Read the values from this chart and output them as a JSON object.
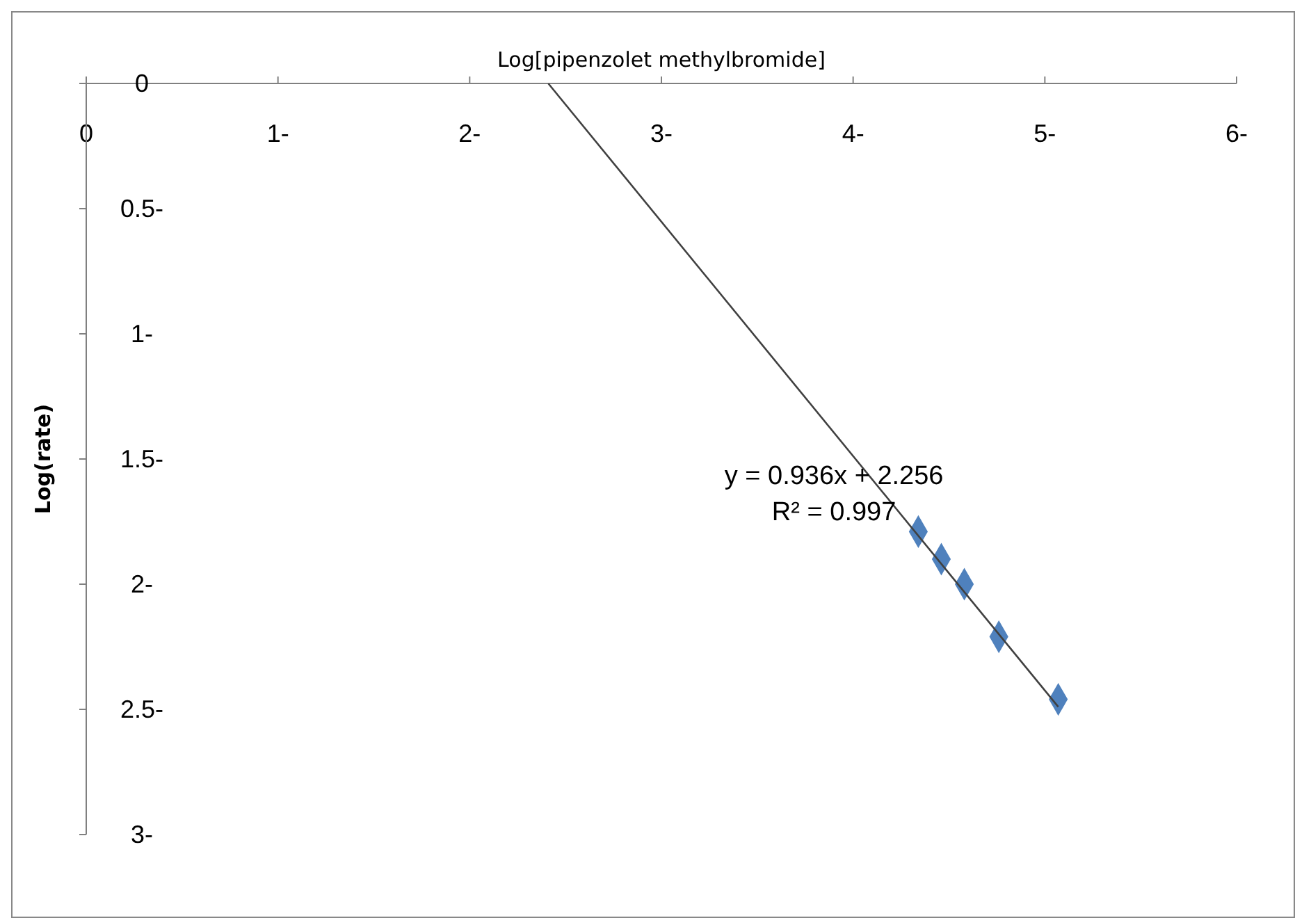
{
  "chart_data": {
    "type": "scatter",
    "xlabel": "Log[pipenzolet methylbromide]",
    "ylabel": "Log(rate)",
    "grid": false,
    "xlim": [
      0,
      -6
    ],
    "ylim": [
      -3,
      0
    ],
    "xticks": [
      0,
      {
        "value": -1,
        "label": "1-"
      },
      {
        "value": -2,
        "label": "2-"
      },
      {
        "value": -3,
        "label": "3-"
      },
      {
        "value": -4,
        "label": "4-"
      },
      {
        "value": -5,
        "label": "5-"
      },
      {
        "value": -6,
        "label": "6-"
      }
    ],
    "yticks": [
      0,
      {
        "value": -0.5,
        "label": "0.5-"
      },
      {
        "value": -1,
        "label": "1-"
      },
      {
        "value": -1.5,
        "label": "1.5-"
      },
      {
        "value": -2,
        "label": "2-"
      },
      {
        "value": -2.5,
        "label": "2.5-"
      },
      {
        "value": -3,
        "label": "3-"
      }
    ],
    "x": [
      -4.34,
      -4.46,
      -4.58,
      -4.76,
      -5.07
    ],
    "series": [
      {
        "color": "#4f81bd",
        "marker": "diamond",
        "values": [
          -1.79,
          -1.9,
          -2.0,
          -2.21,
          -2.46
        ]
      },
      {
        "type": "line",
        "color": "#404040",
        "marker": "none",
        "x": [
          -2.41,
          -5.07
        ],
        "values": [
          0,
          -2.49
        ]
      }
    ],
    "annotations": [
      "y = 0.936x + 2.256",
      "R² = 0.997"
    ]
  }
}
